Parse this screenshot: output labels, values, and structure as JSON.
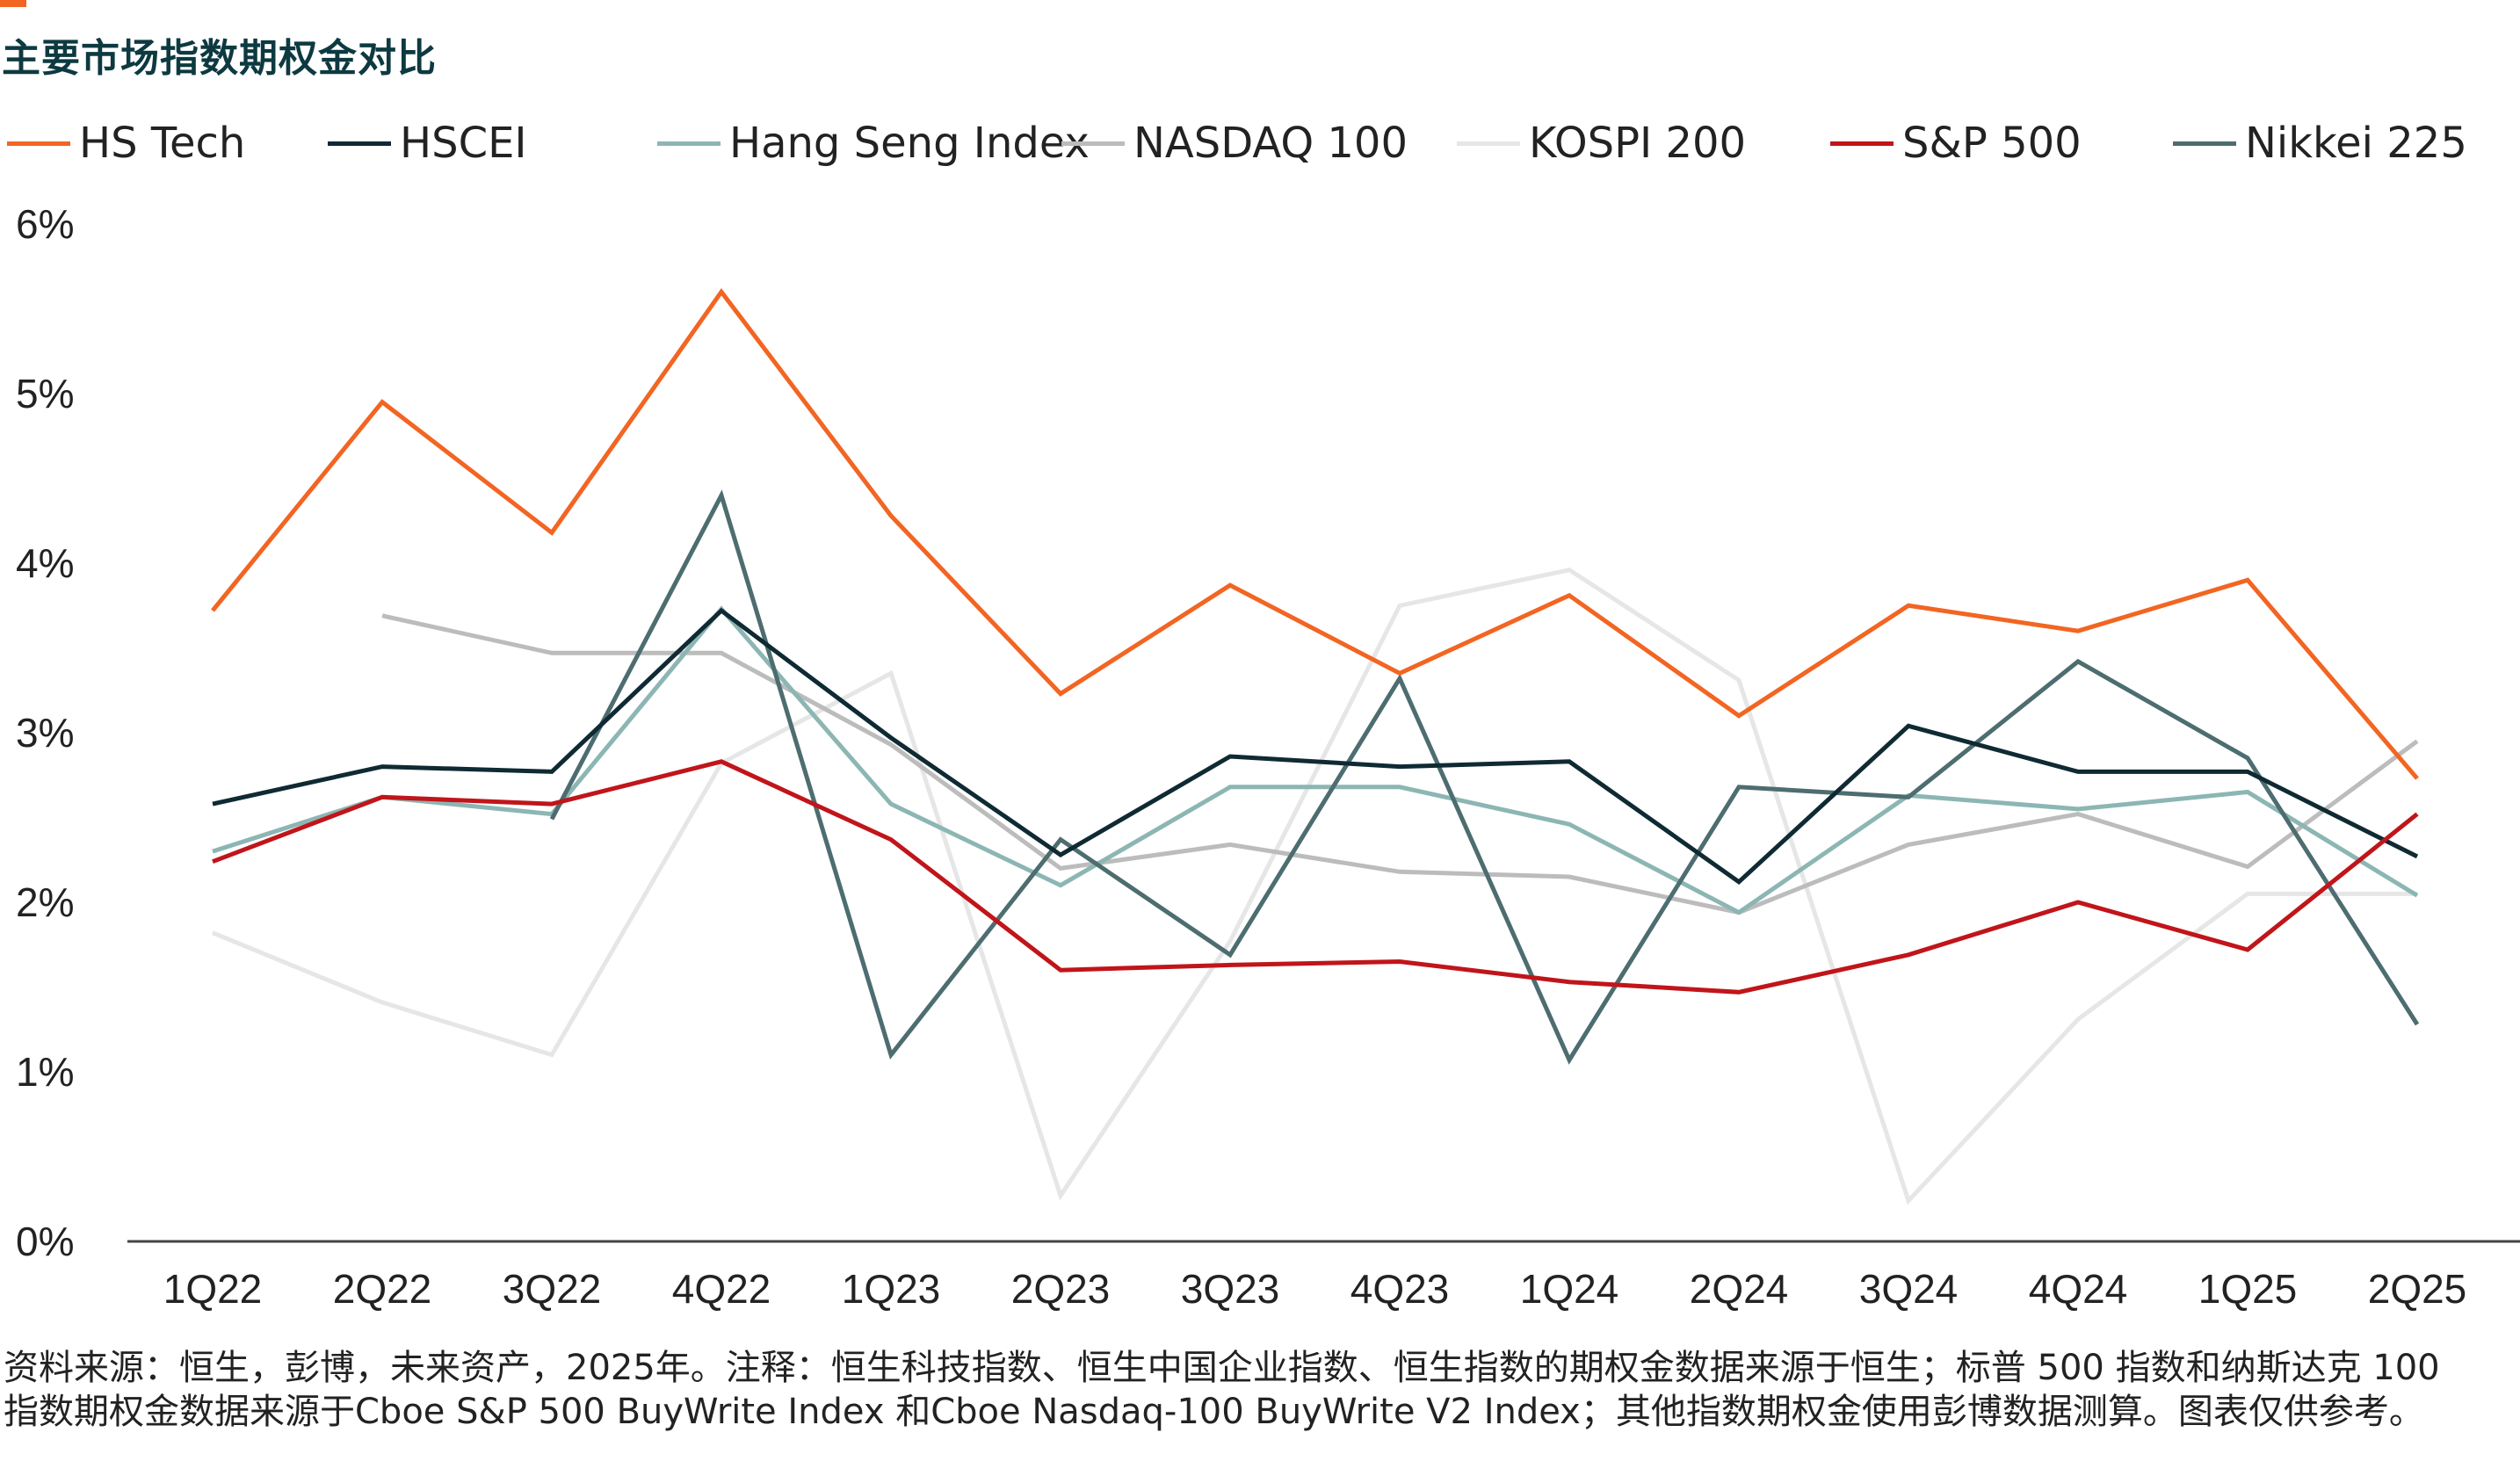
{
  "title": "主要市场指数期权金对比",
  "footnote": "资料来源：恒生，彭博，未来资产，2025年。注释：恒生科技指数、恒生中国企业指数、恒生指数的期权金数据来源于恒生；标普 500 指数和纳斯达克 100 指数期权金数据来源于Cboe S&P 500 BuyWrite Index 和Cboe Nasdaq-100 BuyWrite V2 Index；其他指数期权金使用彭博数据测算。图表仅供参考。",
  "colors": {
    "accent": "#f26522",
    "title": "#0d3a40"
  },
  "chart_data": {
    "type": "line",
    "categories": [
      "1Q22",
      "2Q22",
      "3Q22",
      "4Q22",
      "1Q23",
      "2Q23",
      "3Q23",
      "4Q23",
      "1Q24",
      "2Q24",
      "3Q24",
      "4Q24",
      "1Q25",
      "2Q25"
    ],
    "y_ticks": [
      "0%",
      "1%",
      "2%",
      "3%",
      "4%",
      "5%",
      "6%"
    ],
    "ylim": [
      0,
      6
    ],
    "ylabel": "",
    "xlabel": "",
    "grid": false,
    "legend_position": "top",
    "series": [
      {
        "name": "HS Tech",
        "color": "#f26522",
        "values": [
          3.72,
          4.95,
          4.18,
          5.6,
          4.28,
          3.23,
          3.87,
          3.35,
          3.81,
          3.1,
          3.75,
          3.6,
          3.9,
          2.73
        ]
      },
      {
        "name": "HSCEI",
        "color": "#0f2a33",
        "values": [
          2.58,
          2.8,
          2.77,
          3.72,
          2.97,
          2.28,
          2.86,
          2.8,
          2.83,
          2.12,
          3.04,
          2.77,
          2.77,
          2.27
        ]
      },
      {
        "name": "Hang Seng Index",
        "color": "#8cb6b3",
        "values": [
          2.3,
          2.62,
          2.52,
          3.73,
          2.58,
          2.1,
          2.68,
          2.68,
          2.46,
          1.94,
          2.63,
          2.55,
          2.65,
          2.04
        ]
      },
      {
        "name": "NASDAQ 100",
        "color": "#bcbcbc",
        "values": [
          null,
          3.69,
          3.47,
          3.47,
          2.93,
          2.2,
          2.34,
          2.18,
          2.15,
          1.94,
          2.34,
          2.52,
          2.21,
          2.95
        ]
      },
      {
        "name": "KOSPI 200",
        "color": "#e6e6e6",
        "values": [
          1.82,
          1.41,
          1.1,
          2.82,
          3.35,
          0.27,
          1.77,
          3.75,
          3.96,
          3.31,
          0.24,
          1.31,
          2.05,
          2.05
        ]
      },
      {
        "name": "S&P 500",
        "color": "#c0151a",
        "values": [
          2.24,
          2.62,
          2.58,
          2.83,
          2.37,
          1.6,
          1.63,
          1.65,
          1.53,
          1.47,
          1.69,
          2.0,
          1.72,
          2.52
        ]
      },
      {
        "name": "Nikkei 225",
        "color": "#4d6d70",
        "values": [
          null,
          null,
          2.49,
          4.4,
          1.1,
          2.37,
          1.69,
          3.32,
          1.07,
          2.68,
          2.62,
          3.42,
          2.85,
          1.28
        ]
      }
    ]
  }
}
